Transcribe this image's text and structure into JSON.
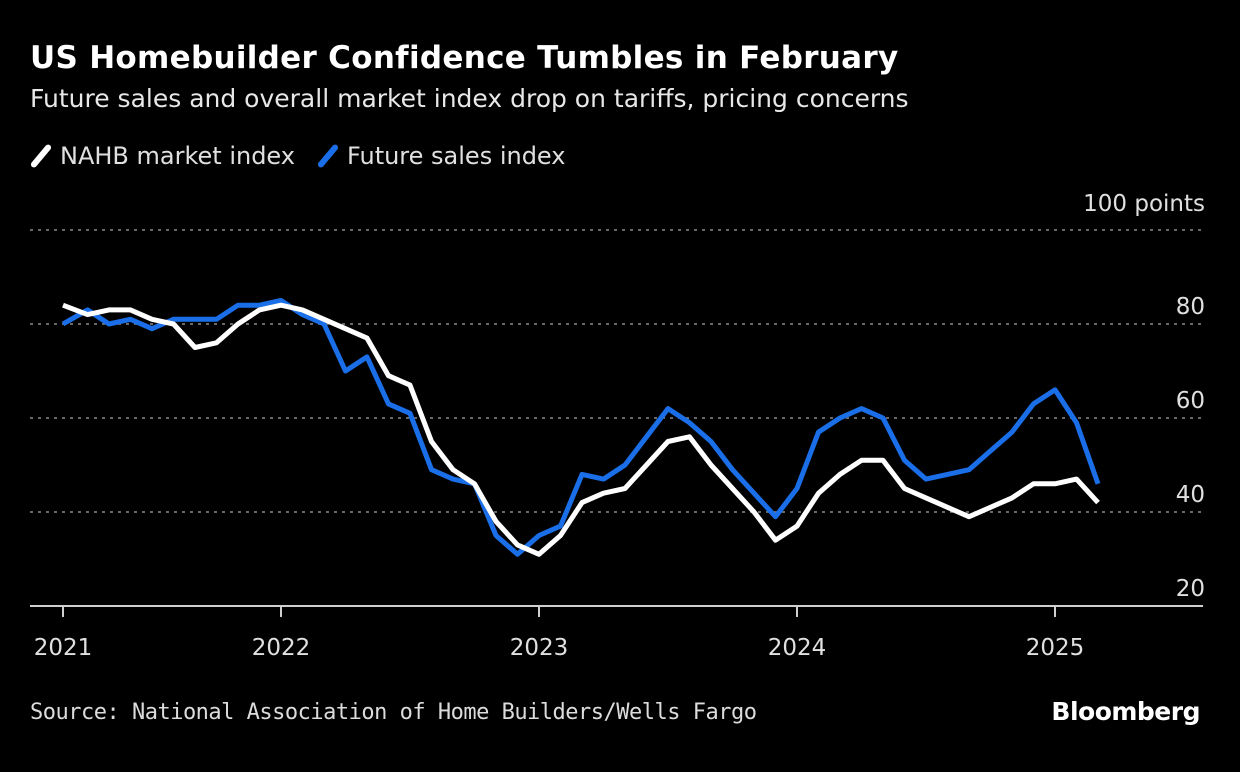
{
  "chart_data": {
    "type": "line",
    "title": "US Homebuilder Confidence Tumbles in February",
    "subtitle": "Future sales and overall market index drop on tariffs, pricing concerns",
    "unit_label": "100 points",
    "x": [
      "2021-02",
      "2021-03",
      "2021-04",
      "2021-05",
      "2021-06",
      "2021-07",
      "2021-08",
      "2021-09",
      "2021-10",
      "2021-11",
      "2021-12",
      "2022-01",
      "2022-02",
      "2022-03",
      "2022-04",
      "2022-05",
      "2022-06",
      "2022-07",
      "2022-08",
      "2022-09",
      "2022-10",
      "2022-11",
      "2022-12",
      "2023-01",
      "2023-02",
      "2023-03",
      "2023-04",
      "2023-05",
      "2023-06",
      "2023-07",
      "2023-08",
      "2023-09",
      "2023-10",
      "2023-11",
      "2023-12",
      "2024-01",
      "2024-02",
      "2024-03",
      "2024-04",
      "2024-05",
      "2024-06",
      "2024-07",
      "2024-08",
      "2024-09",
      "2024-10",
      "2024-11",
      "2024-12",
      "2025-01",
      "2025-02"
    ],
    "series": [
      {
        "name": "NAHB market index",
        "color": "#ffffff",
        "values": [
          84,
          82,
          83,
          83,
          81,
          80,
          75,
          76,
          80,
          83,
          84,
          83,
          81,
          79,
          77,
          69,
          67,
          55,
          49,
          46,
          38,
          33,
          31,
          35,
          42,
          44,
          45,
          50,
          55,
          56,
          50,
          45,
          40,
          34,
          37,
          44,
          48,
          51,
          51,
          45,
          43,
          41,
          39,
          41,
          43,
          46,
          46,
          47,
          42
        ]
      },
      {
        "name": "Future sales index",
        "color": "#1a6fe8",
        "values": [
          80,
          83,
          80,
          81,
          79,
          81,
          81,
          81,
          84,
          84,
          85,
          82,
          80,
          70,
          73,
          63,
          61,
          49,
          47,
          46,
          35,
          31,
          35,
          37,
          48,
          47,
          50,
          56,
          62,
          59,
          55,
          49,
          44,
          39,
          45,
          57,
          60,
          62,
          60,
          51,
          47,
          48,
          49,
          53,
          57,
          63,
          66,
          59,
          46
        ]
      }
    ],
    "x_ticks": [
      {
        "label": "2021",
        "at": "2021-02"
      },
      {
        "label": "2022",
        "at": "2021-12"
      },
      {
        "label": "2023",
        "at": "2022-12"
      },
      {
        "label": "2024",
        "at": "2023-12"
      },
      {
        "label": "2025",
        "at": "2024-12"
      }
    ],
    "y_ticks": [
      20,
      40,
      60,
      80,
      100
    ],
    "ylim": [
      20,
      100
    ],
    "grid": true,
    "legend_placement": "top-left",
    "source": "Source: National Association of Home Builders/Wells Fargo",
    "logo": "Bloomberg"
  }
}
